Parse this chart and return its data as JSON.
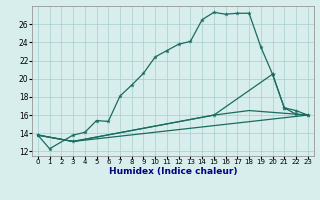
{
  "xlabel": "Humidex (Indice chaleur)",
  "bg_color": "#d8eeed",
  "line_color": "#1a6b60",
  "grid_color": "#a8cece",
  "xlim": [
    -0.5,
    23.5
  ],
  "ylim": [
    11.5,
    28.0
  ],
  "xticks": [
    0,
    1,
    2,
    3,
    4,
    5,
    6,
    7,
    8,
    9,
    10,
    11,
    12,
    13,
    14,
    15,
    16,
    17,
    18,
    19,
    20,
    21,
    22,
    23
  ],
  "yticks": [
    12,
    14,
    16,
    18,
    20,
    22,
    24,
    26
  ],
  "line1_x": [
    0,
    1,
    3,
    4,
    5,
    6,
    7,
    8,
    9,
    10,
    11,
    12,
    13,
    14,
    15,
    16,
    17,
    18,
    19,
    20,
    21,
    22,
    23
  ],
  "line1_y": [
    13.8,
    12.3,
    13.8,
    14.1,
    15.4,
    15.3,
    18.1,
    19.3,
    20.6,
    22.4,
    23.1,
    23.8,
    24.1,
    26.5,
    27.3,
    27.1,
    27.2,
    27.2,
    23.5,
    20.5,
    16.8,
    16.1,
    16.0
  ],
  "line2_x": [
    0,
    3,
    23
  ],
  "line2_y": [
    13.8,
    13.1,
    16.0
  ],
  "line3_x": [
    0,
    3,
    15,
    18,
    23
  ],
  "line3_y": [
    13.8,
    13.1,
    16.0,
    16.5,
    16.0
  ],
  "line4_x": [
    0,
    3,
    15,
    20,
    21,
    22,
    23
  ],
  "line4_y": [
    13.8,
    13.1,
    16.0,
    20.5,
    16.8,
    16.5,
    16.0
  ]
}
